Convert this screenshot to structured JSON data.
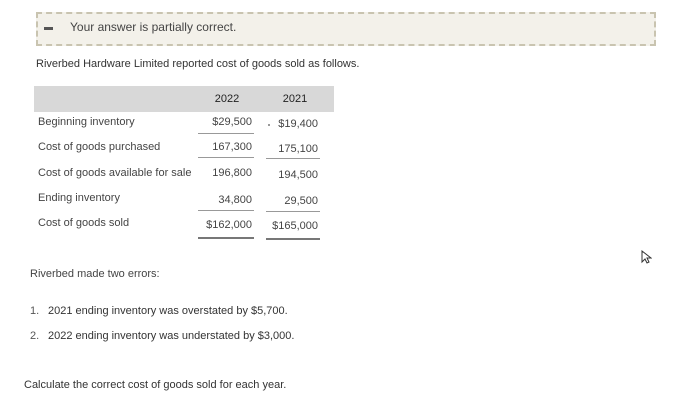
{
  "feedback": {
    "message": "Your answer is partially correct."
  },
  "intro": "Riverbed Hardware Limited reported cost of goods sold as follows.",
  "table": {
    "years": [
      "2022",
      "2021"
    ],
    "rows": [
      {
        "label": "Beginning inventory",
        "v2022": "$29,500",
        "v2021": "$19,400"
      },
      {
        "label": "Cost of goods purchased",
        "v2022": "167,300",
        "v2021": "175,100"
      },
      {
        "label": "Cost of goods available for sale",
        "v2022": "196,800",
        "v2021": "194,500"
      },
      {
        "label": "Ending inventory",
        "v2022": "34,800",
        "v2021": "29,500"
      },
      {
        "label": "Cost of goods sold",
        "v2022": "$162,000",
        "v2021": "$165,000"
      }
    ]
  },
  "errors": {
    "title": "Riverbed made two errors:",
    "items": [
      {
        "num": "1.",
        "text": "2021 ending inventory was overstated by $5,700."
      },
      {
        "num": "2.",
        "text": "2022 ending inventory was understated by $3,000."
      }
    ]
  },
  "instruction": "Calculate the correct cost of goods sold for each year."
}
